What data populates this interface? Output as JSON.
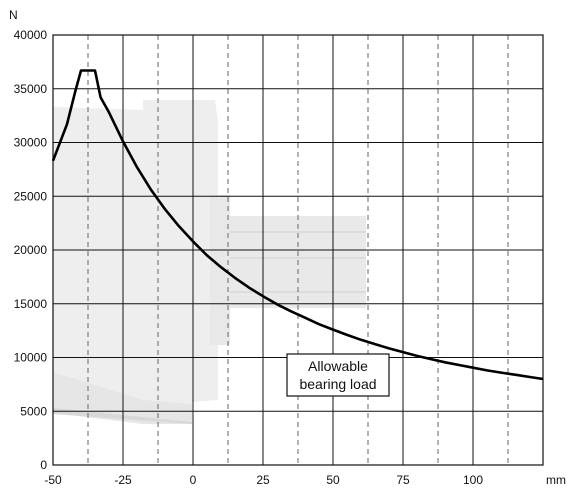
{
  "chart_data": {
    "type": "line",
    "title": "",
    "xlabel": "mm",
    "ylabel": "N",
    "xlim": [
      -50,
      125
    ],
    "ylim": [
      0,
      40000
    ],
    "x_ticks": [
      -50,
      -25,
      0,
      25,
      50,
      75,
      100
    ],
    "x_tick_labels": [
      "-50",
      "-25",
      "0",
      "25",
      "50",
      "75",
      "100"
    ],
    "y_ticks": [
      0,
      5000,
      10000,
      15000,
      20000,
      25000,
      30000,
      35000,
      40000
    ],
    "y_tick_labels": [
      "0",
      "5000",
      "10000",
      "15000",
      "20000",
      "25000",
      "30000",
      "35000",
      "40000"
    ],
    "minor_x_dashed": [
      -37.5,
      -12.5,
      12.5,
      37.5,
      62.5,
      87.5,
      112.5
    ],
    "grid": true,
    "background_image": "motor-and-shaft-silhouette",
    "annotation": {
      "lines": [
        "Allowable",
        "bearing load"
      ]
    },
    "series": [
      {
        "color": "#000000",
        "x": [
          -50,
          -45,
          -42,
          -40,
          -35,
          -33,
          -30,
          -25,
          -20,
          -15,
          -10,
          -5,
          0,
          5,
          10,
          15,
          20,
          25,
          30,
          35,
          40,
          45,
          50,
          55,
          60,
          65,
          70,
          75,
          80,
          85,
          90,
          95,
          100,
          105,
          110,
          115,
          120,
          125
        ],
        "values": [
          28300,
          31700,
          34800,
          36700,
          36700,
          34200,
          32800,
          30100,
          27700,
          25600,
          23800,
          22200,
          20800,
          19500,
          18400,
          17400,
          16500,
          15700,
          14950,
          14300,
          13700,
          13100,
          12600,
          12100,
          11650,
          11250,
          10850,
          10500,
          10150,
          9850,
          9550,
          9300,
          9050,
          8800,
          8600,
          8400,
          8200,
          8000
        ]
      }
    ]
  }
}
